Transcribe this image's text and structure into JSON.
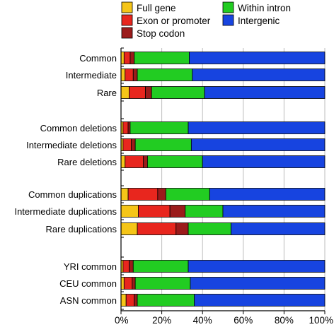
{
  "chart_data": {
    "type": "bar",
    "orientation": "horizontal",
    "stacked": true,
    "categories": [
      "Common",
      "Intermediate",
      "Rare",
      "Common deletions",
      "Intermediate deletions",
      "Rare deletions",
      "Common duplications",
      "Intermediate duplications",
      "Rare duplications",
      "YRI common",
      "CEU common",
      "ASN common"
    ],
    "groups": [
      [
        0,
        1,
        2
      ],
      [
        3,
        4,
        5
      ],
      [
        6,
        7,
        8
      ],
      [
        9,
        10,
        11
      ]
    ],
    "series": [
      {
        "name": "Full gene",
        "color": "#f5c518",
        "values": [
          1.5,
          2,
          4,
          1,
          1,
          2,
          3.5,
          8.5,
          8,
          1,
          1.5,
          2.5
        ]
      },
      {
        "name": "Exon or promoter",
        "color": "#e8261e",
        "values": [
          3,
          4,
          8,
          2.5,
          4,
          9,
          14.5,
          15.5,
          19,
          3,
          4,
          4
        ]
      },
      {
        "name": "Stop codon",
        "color": "#9b1b1b",
        "values": [
          2,
          2,
          3,
          1,
          2,
          2,
          4,
          7.5,
          6,
          2,
          1.5,
          1.5
        ]
      },
      {
        "name": "Within intron",
        "color": "#22cc22",
        "values": [
          27,
          27,
          26,
          28.5,
          27.5,
          27,
          21.5,
          18.5,
          21,
          27,
          27,
          28
        ]
      },
      {
        "name": "Intergenic",
        "color": "#1744e0",
        "values": [
          66.5,
          65,
          59,
          67,
          65.5,
          60,
          56.5,
          50,
          46,
          67,
          66,
          64
        ]
      }
    ],
    "legend": {
      "columns": [
        [
          0,
          1,
          2
        ],
        [
          3,
          4
        ]
      ]
    },
    "xlim": [
      0,
      100
    ],
    "xticks": [
      "0%",
      "20%",
      "40%",
      "60%",
      "80%",
      "100%"
    ],
    "grid": "vertical",
    "xlabel": "",
    "ylabel": "",
    "title": ""
  }
}
